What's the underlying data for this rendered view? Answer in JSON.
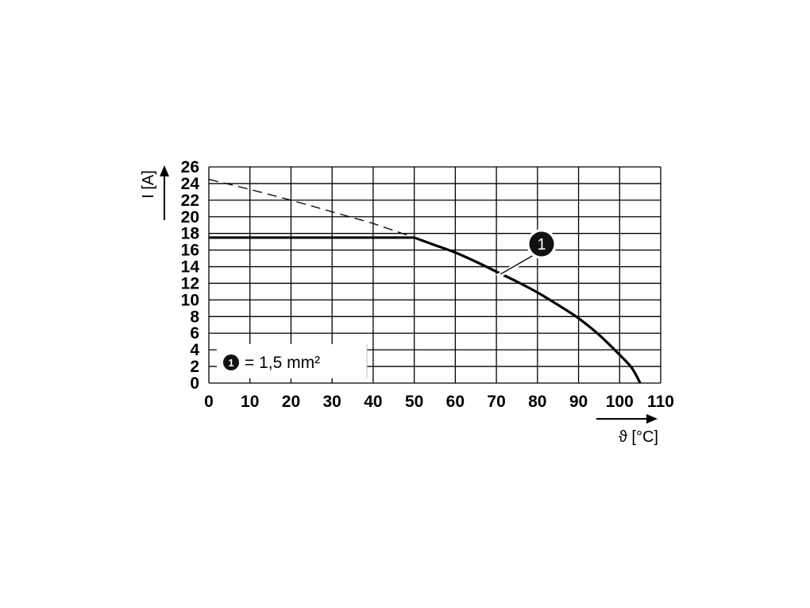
{
  "chart_data": {
    "type": "line",
    "xlabel": "ϑ [°C]",
    "ylabel": "I [A]",
    "xlim": [
      0,
      110
    ],
    "ylim": [
      0,
      26
    ],
    "x_ticks": [
      "0",
      "10",
      "20",
      "30",
      "40",
      "50",
      "60",
      "70",
      "80",
      "90",
      "100",
      "110"
    ],
    "y_ticks": [
      "0",
      "2",
      "4",
      "6",
      "8",
      "10",
      "12",
      "14",
      "16",
      "18",
      "20",
      "22",
      "24",
      "26"
    ],
    "grid": true,
    "series": [
      {
        "name": "1",
        "style": "solid",
        "points": [
          [
            0,
            17.5
          ],
          [
            50,
            17.5
          ],
          [
            55,
            16.6
          ],
          [
            60,
            15.7
          ],
          [
            65,
            14.6
          ],
          [
            70,
            13.4
          ],
          [
            75,
            12.2
          ],
          [
            80,
            10.9
          ],
          [
            85,
            9.4
          ],
          [
            90,
            7.8
          ],
          [
            95,
            5.8
          ],
          [
            100,
            3.4
          ],
          [
            103,
            1.8
          ],
          [
            105,
            0
          ]
        ]
      },
      {
        "name": "",
        "style": "dashed",
        "points": [
          [
            0,
            24.5
          ],
          [
            10,
            23.3
          ],
          [
            20,
            22.0
          ],
          [
            30,
            20.6
          ],
          [
            40,
            19.2
          ],
          [
            50,
            17.5
          ]
        ]
      }
    ],
    "annotation": {
      "label": "1",
      "x": 71,
      "y": 13.1
    },
    "legend": {
      "badge": "1",
      "text": "= 1,5 mm²",
      "placement": "bottom-left"
    }
  }
}
